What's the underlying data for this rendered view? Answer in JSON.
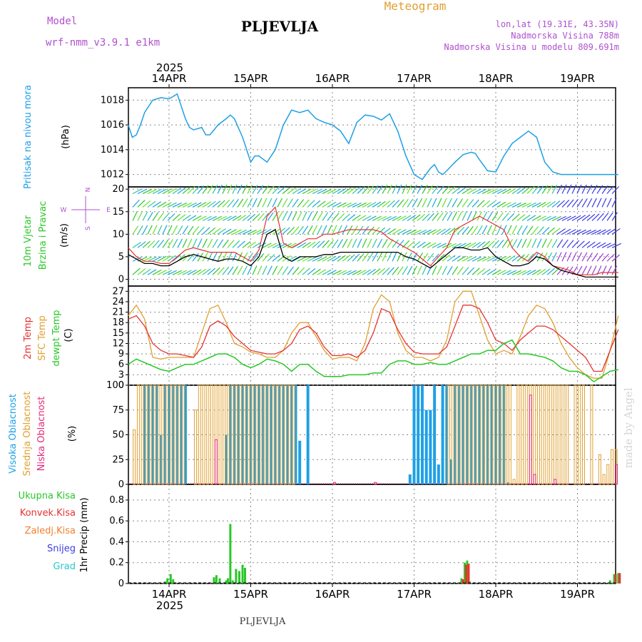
{
  "header": {
    "model_label": "Model",
    "model_name": "wrf-nmm_v3.9.1 e1km",
    "station": "PLJEVLJA",
    "product": "Meteogram",
    "lonlat": "lon,lat (19.31E, 43.35N)",
    "altitude": "Nadmorska Visina 788m",
    "model_altitude": "Nadmorska Visina u modelu 809.691m",
    "footer_station": "PLJEVLJA",
    "watermark": "made by Angel",
    "year": "2025"
  },
  "colors": {
    "pressure": "#1ea0e6",
    "wind_speed": "#000000",
    "gust": "#e63232",
    "temp_2m": "#e63232",
    "temp_sfc": "#e0a030",
    "temp_dew": "#28c828",
    "cloud_high": "#1ea0e6",
    "cloud_mid": "#e0a030",
    "cloud_low": "#e6287a",
    "precip_total": "#28c828",
    "precip_conv": "#e63232",
    "precip_frz": "#f08030",
    "precip_snow": "#3c3ce6",
    "precip_hail": "#28c8c8",
    "label_purple": "#b050d0"
  },
  "days": [
    "14APR",
    "15APR",
    "16APR",
    "17APR",
    "18APR",
    "19APR"
  ],
  "chart_data": [
    {
      "type": "line",
      "panel": "pressure",
      "ylabel": [
        "Pritisak na nivou mora",
        "(hPa)"
      ],
      "ylim": [
        1011,
        1019
      ],
      "yticks": [
        1012,
        1014,
        1016,
        1018
      ],
      "x_days": [
        -0.5,
        -0.45,
        -0.4,
        -0.35,
        -0.3,
        -0.2,
        -0.1,
        0,
        0.1,
        0.2,
        0.25,
        0.3,
        0.4,
        0.45,
        0.5,
        0.6,
        0.7,
        0.75,
        0.8,
        0.9,
        1,
        1.05,
        1.1,
        1.2,
        1.25,
        1.3,
        1.4,
        1.5,
        1.6,
        1.7,
        1.8,
        1.9,
        2,
        2.1,
        2.2,
        2.3,
        2.4,
        2.5,
        2.6,
        2.7,
        2.8,
        2.9,
        3,
        3.1,
        3.2,
        3.25,
        3.3,
        3.35,
        3.4,
        3.5,
        3.6,
        3.7,
        3.75,
        3.8,
        3.9,
        4,
        4.1,
        4.2,
        4.3,
        4.4,
        4.5,
        4.6,
        4.7,
        4.8,
        4.9,
        5,
        5.1,
        5.2,
        5.3,
        5.4,
        5.45,
        5.5
      ],
      "series": [
        {
          "values": [
            1016,
            1015,
            1015.2,
            1016,
            1017,
            1018,
            1018.2,
            1018.1,
            1018.5,
            1016.5,
            1015.8,
            1015.6,
            1015.8,
            1015.2,
            1015.2,
            1016,
            1016.5,
            1016.8,
            1016.5,
            1015,
            1013,
            1013.5,
            1013.5,
            1013,
            1013.5,
            1014,
            1016,
            1017.2,
            1017,
            1017.2,
            1016.5,
            1016.2,
            1016,
            1015.5,
            1014.5,
            1016.2,
            1016.8,
            1016.7,
            1016.4,
            1016.9,
            1015.5,
            1013.5,
            1012,
            1011.6,
            1012.5,
            1012.8,
            1012.2,
            1012,
            1012.3,
            1013,
            1013.6,
            1013.8,
            1013.7,
            1013.2,
            1012.3,
            1012.2,
            1013.5,
            1014.5,
            1015,
            1015.5,
            1015,
            1013,
            1012.2,
            1012,
            1012,
            1012,
            1012,
            1012,
            1012,
            1012,
            1012,
            1012
          ]
        }
      ]
    },
    {
      "type": "line",
      "panel": "wind",
      "ylabel": [
        "10m Vjetar",
        "Brzina i Pravac",
        "(m/s)"
      ],
      "compass": [
        "N",
        "E",
        "W",
        "S"
      ],
      "ylim": [
        -1.5,
        20.5
      ],
      "yticks": [
        0,
        5,
        10,
        15,
        20
      ],
      "x_days": [
        -0.5,
        -0.4,
        -0.3,
        -0.2,
        -0.1,
        0,
        0.1,
        0.2,
        0.3,
        0.4,
        0.5,
        0.6,
        0.7,
        0.8,
        0.9,
        1,
        1.1,
        1.2,
        1.3,
        1.4,
        1.5,
        1.6,
        1.7,
        1.8,
        1.9,
        2,
        2.1,
        2.2,
        2.3,
        2.4,
        2.5,
        2.6,
        2.7,
        2.8,
        2.9,
        3,
        3.1,
        3.2,
        3.3,
        3.4,
        3.5,
        3.6,
        3.7,
        3.8,
        3.9,
        4,
        4.1,
        4.2,
        4.3,
        4.4,
        4.5,
        4.6,
        4.7,
        4.8,
        4.9,
        5,
        5.1,
        5.2,
        5.3,
        5.4,
        5.5
      ],
      "series": [
        {
          "name": "speed",
          "values": [
            5.5,
            4.5,
            3.5,
            3.5,
            3,
            3,
            4,
            5,
            5.5,
            5,
            4.5,
            4,
            4.5,
            4.5,
            4,
            3,
            5,
            10,
            11,
            5,
            4,
            5,
            5,
            5,
            5.5,
            5.5,
            6,
            6,
            6,
            6,
            6,
            6,
            6,
            6,
            5,
            4.5,
            3.5,
            2.5,
            4,
            5.5,
            7,
            7,
            6.5,
            6.5,
            7,
            5,
            4,
            3,
            3,
            3.5,
            5,
            4.5,
            3,
            2,
            1.5,
            1,
            0.5,
            0.5,
            0.5,
            0.5,
            0.5
          ]
        },
        {
          "name": "gust",
          "values": [
            7,
            5,
            4,
            4,
            3.5,
            3.5,
            5,
            6.5,
            7,
            6.5,
            6,
            6,
            6,
            6,
            5,
            4,
            6.5,
            14,
            16,
            8,
            7,
            8,
            9,
            9,
            10,
            10,
            10.5,
            11,
            11,
            11,
            11,
            10.5,
            9,
            8,
            7,
            6,
            4.5,
            3,
            5,
            7,
            11,
            12,
            13,
            14,
            13,
            12,
            11,
            7,
            5,
            4,
            6,
            5,
            3,
            2.5,
            2,
            1,
            1,
            1,
            1.5,
            1.5,
            1.5
          ]
        }
      ]
    },
    {
      "type": "line",
      "panel": "temperature",
      "ylabel": [
        "2m Temp",
        "SFC Temp",
        "dewpt Temp",
        "(C)"
      ],
      "ylim": [
        0,
        28.5
      ],
      "yticks": [
        0,
        3,
        6,
        9,
        12,
        15,
        18,
        21,
        24,
        27
      ],
      "x_days": [
        -0.5,
        -0.4,
        -0.3,
        -0.2,
        -0.1,
        0,
        0.1,
        0.2,
        0.3,
        0.4,
        0.5,
        0.6,
        0.7,
        0.8,
        0.9,
        1,
        1.1,
        1.2,
        1.3,
        1.4,
        1.5,
        1.6,
        1.7,
        1.8,
        1.9,
        2,
        2.1,
        2.2,
        2.3,
        2.4,
        2.5,
        2.6,
        2.7,
        2.8,
        2.9,
        3,
        3.1,
        3.2,
        3.3,
        3.4,
        3.5,
        3.6,
        3.7,
        3.8,
        3.9,
        4,
        4.1,
        4.2,
        4.3,
        4.4,
        4.5,
        4.6,
        4.7,
        4.8,
        4.9,
        5,
        5.1,
        5.2,
        5.3,
        5.4,
        5.5
      ],
      "series": [
        {
          "name": "2m",
          "values": [
            19,
            20,
            17,
            12,
            10,
            9,
            9,
            8.5,
            8,
            11,
            17,
            18.5,
            17,
            14,
            12,
            10,
            9.5,
            9,
            9,
            10,
            12,
            16,
            17,
            15,
            11,
            8.5,
            8.5,
            9,
            8,
            10,
            15,
            22,
            21,
            16,
            12,
            9.5,
            9,
            9,
            9,
            11,
            17,
            23,
            23,
            22,
            18,
            13,
            12,
            10,
            13,
            15,
            17,
            17,
            16,
            14,
            12,
            10,
            8,
            4,
            4,
            10,
            16
          ]
        },
        {
          "name": "sfc",
          "values": [
            20,
            23,
            19,
            8,
            7.5,
            8,
            8,
            8,
            8,
            15,
            22,
            23,
            18,
            12,
            11,
            9.5,
            9,
            8,
            8,
            10,
            15,
            18,
            18,
            14,
            10,
            7.5,
            8,
            8,
            7,
            12,
            22,
            26,
            24,
            15,
            10,
            8,
            8,
            7,
            8,
            13,
            24,
            27,
            27,
            20,
            13,
            9,
            10,
            9,
            14,
            20,
            23,
            22,
            18,
            12,
            8,
            5,
            3,
            2,
            2,
            10,
            20
          ]
        },
        {
          "name": "dewpt",
          "values": [
            6,
            7.5,
            6.5,
            5.5,
            4.5,
            4,
            5,
            6,
            6,
            7,
            8,
            9,
            9,
            8,
            6,
            5,
            6,
            7.5,
            7,
            6,
            4,
            6,
            6,
            4,
            2.5,
            2.5,
            2.5,
            3,
            3,
            3,
            3.5,
            3.5,
            6,
            7,
            7,
            6,
            6,
            6.5,
            6,
            6,
            7,
            8,
            9,
            9,
            10,
            10,
            12,
            13,
            9,
            9,
            8.5,
            8,
            7,
            5,
            4,
            4,
            3,
            1,
            2.5,
            4,
            4.5
          ]
        }
      ]
    },
    {
      "type": "bar",
      "panel": "clouds",
      "ylabel": [
        "Visoka Oblacnost",
        "Srednja Oblacnost",
        "Niska Oblacnost",
        "(%)"
      ],
      "legend": [
        "Visoka Oblacnost",
        "Srednja Oblacnost",
        "Niska Oblacnost"
      ],
      "ylim": [
        0,
        100
      ],
      "yticks": [
        0,
        25,
        50,
        75,
        100
      ],
      "x_days": [
        -0.4,
        -0.35,
        -0.3,
        -0.25,
        -0.2,
        -0.15,
        -0.1,
        -0.05,
        0,
        0.05,
        0.1,
        0.15,
        0.2,
        0.25,
        0.3,
        0.35,
        0.4,
        0.45,
        0.5,
        0.55,
        0.6,
        0.65,
        0.7,
        0.75,
        0.8,
        0.85,
        0.9,
        0.95,
        1,
        1.05,
        1.1,
        1.15,
        1.2,
        1.25,
        1.3,
        1.35,
        1.4,
        1.45,
        1.5,
        1.55,
        1.6,
        1.65,
        1.7,
        2,
        2.5,
        2.7,
        2.75,
        2.8,
        2.85,
        2.9,
        2.95,
        3,
        3.05,
        3.1,
        3.15,
        3.2,
        3.25,
        3.3,
        3.35,
        3.4,
        3.45,
        3.5,
        3.55,
        3.6,
        3.65,
        3.7,
        3.75,
        3.8,
        3.85,
        3.9,
        3.95,
        4,
        4.05,
        4.1,
        4.15,
        4.2,
        4.25,
        4.3,
        4.35,
        4.4,
        4.45,
        4.5,
        4.55,
        4.6,
        4.65,
        4.7,
        4.75,
        4.8,
        4.85,
        4.9,
        5,
        5.05,
        5.1,
        5.2,
        5.3,
        5.35,
        5.4,
        5.45,
        5.5
      ],
      "series": [
        {
          "name": "Visoka Oblacnost",
          "values": [
            0,
            0,
            100,
            100,
            100,
            100,
            50,
            100,
            100,
            100,
            100,
            100,
            100,
            0,
            0,
            0,
            0,
            0,
            0,
            0,
            0,
            0,
            50,
            100,
            100,
            100,
            100,
            100,
            100,
            100,
            100,
            100,
            100,
            100,
            100,
            100,
            100,
            100,
            100,
            100,
            44,
            0,
            100,
            0,
            0,
            0,
            0,
            0,
            0,
            0,
            10,
            100,
            100,
            100,
            75,
            75,
            100,
            20,
            100,
            100,
            25,
            100,
            100,
            100,
            100,
            100,
            100,
            100,
            100,
            100,
            100,
            100,
            100,
            100,
            2,
            0,
            0,
            0,
            0,
            0,
            0,
            0,
            0,
            0,
            0,
            0,
            0,
            0,
            0,
            0,
            0,
            0,
            0,
            0,
            0,
            0,
            0,
            0,
            0
          ]
        },
        {
          "name": "Srednja Oblacnost",
          "values": [
            55,
            100,
            100,
            100,
            100,
            100,
            100,
            100,
            100,
            100,
            100,
            100,
            100,
            0,
            0,
            75,
            100,
            100,
            100,
            100,
            100,
            100,
            100,
            100,
            100,
            100,
            100,
            100,
            100,
            100,
            100,
            100,
            100,
            100,
            100,
            100,
            100,
            100,
            100,
            100,
            0,
            0,
            0,
            0,
            0,
            0,
            0,
            0,
            0,
            0,
            0,
            0,
            0,
            0,
            0,
            0,
            0,
            0,
            0,
            0,
            100,
            100,
            100,
            100,
            100,
            100,
            100,
            100,
            100,
            100,
            100,
            100,
            100,
            100,
            100,
            100,
            5,
            100,
            100,
            100,
            100,
            100,
            100,
            100,
            100,
            100,
            100,
            100,
            100,
            100,
            100,
            100,
            100,
            100,
            30,
            10,
            20,
            35,
            35
          ]
        },
        {
          "name": "Niska Oblacnost",
          "values": [
            0,
            0,
            0,
            0,
            0,
            0,
            0,
            0,
            0,
            0,
            0,
            0,
            0,
            0,
            0,
            0,
            0,
            0,
            0,
            45,
            0,
            0,
            0,
            0,
            0,
            0,
            0,
            0,
            0,
            0,
            0,
            0,
            0,
            0,
            0,
            0,
            0,
            0,
            0,
            0,
            0,
            0,
            0,
            2,
            2,
            0,
            0,
            0,
            0,
            0,
            0,
            0,
            0,
            0,
            0,
            0,
            0,
            0,
            0,
            0,
            0,
            0,
            0,
            0,
            0,
            0,
            0,
            0,
            0,
            0,
            0,
            0,
            0,
            0,
            0,
            0,
            0,
            0,
            0,
            90,
            10,
            0,
            0,
            0,
            0,
            5,
            0,
            0,
            0,
            0,
            0,
            0,
            0,
            0,
            0,
            0,
            0,
            20,
            0
          ]
        }
      ]
    },
    {
      "type": "bar",
      "panel": "precip",
      "ylabel": [
        "1hr Precip (mm)"
      ],
      "legend": [
        "Ukupna Kisa",
        "Konvek.Kisa",
        "Zaledj.Kisa",
        "Snijeg",
        "Grad"
      ],
      "ylim": [
        0,
        0.95
      ],
      "yticks": [
        0,
        0.2,
        0.4,
        0.6,
        0.8
      ],
      "x_days": [
        -0.05,
        -0.02,
        0.02,
        0.05,
        0.55,
        0.58,
        0.62,
        0.7,
        0.72,
        0.75,
        0.78,
        0.82,
        0.86,
        0.9,
        0.93,
        3.58,
        3.62,
        3.65,
        3.68,
        5.4,
        5.45,
        5.5
      ],
      "series": [
        {
          "name": "Ukupna Kisa",
          "values": [
            0.02,
            0.05,
            0.09,
            0.04,
            0.06,
            0.08,
            0.05,
            0.03,
            0.05,
            0.57,
            0.03,
            0.14,
            0.12,
            0.18,
            0.15,
            0.05,
            0.2,
            0.22,
            0.02,
            0.03,
            0.09,
            0.1
          ]
        },
        {
          "name": "Konvek.Kisa",
          "values": [
            0,
            0,
            0,
            0,
            0,
            0,
            0,
            0,
            0,
            0,
            0,
            0,
            0,
            0,
            0,
            0.04,
            0.18,
            0.19,
            0,
            0,
            0.09,
            0.1
          ]
        }
      ]
    }
  ]
}
